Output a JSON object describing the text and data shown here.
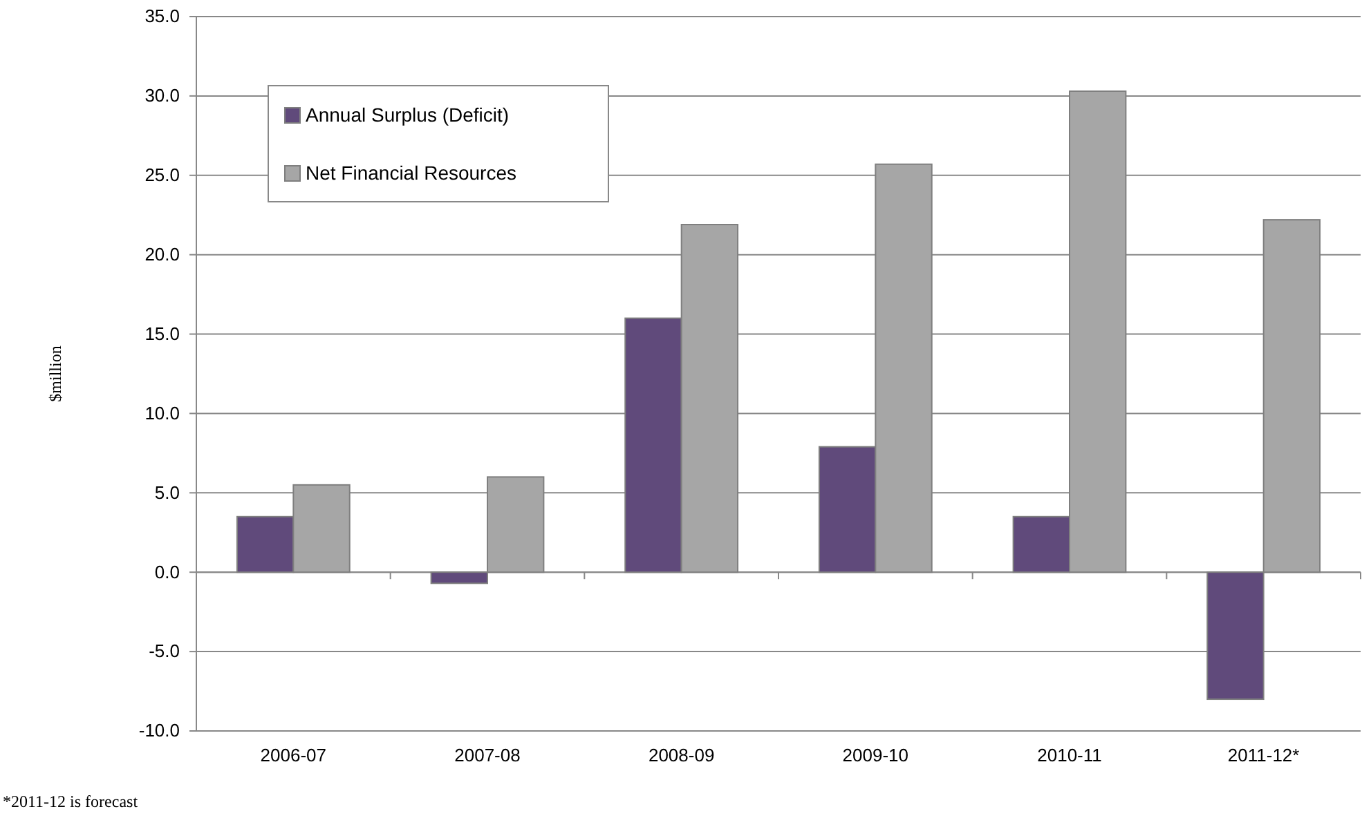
{
  "chart_data": {
    "type": "bar",
    "categories": [
      "2006-07",
      "2007-08",
      "2008-09",
      "2009-10",
      "2010-11",
      "2011-12*"
    ],
    "series": [
      {
        "name": "Annual Surplus (Deficit)",
        "color": "#604a7b",
        "values": [
          3.5,
          -0.7,
          16.0,
          7.9,
          3.5,
          -8.0
        ]
      },
      {
        "name": "Net Financial Resources",
        "color": "#a6a6a6",
        "values": [
          5.5,
          6.0,
          21.9,
          25.7,
          30.3,
          22.2
        ]
      }
    ],
    "ylabel": "$million",
    "ylim": [
      -10,
      35
    ],
    "yticks": [
      {
        "value": -10,
        "label": "-10.0"
      },
      {
        "value": -5,
        "label": "-5.0"
      },
      {
        "value": 0,
        "label": "0.0"
      },
      {
        "value": 5,
        "label": "5.0"
      },
      {
        "value": 10,
        "label": "10.0"
      },
      {
        "value": 15,
        "label": "15.0"
      },
      {
        "value": 20,
        "label": "20.0"
      },
      {
        "value": 25,
        "label": "25.0"
      },
      {
        "value": 30,
        "label": "30.0"
      },
      {
        "value": 35,
        "label": "35.0"
      }
    ],
    "grid": "y",
    "legend": "top left",
    "annotations": [
      "*2011-12 is forecast"
    ]
  }
}
